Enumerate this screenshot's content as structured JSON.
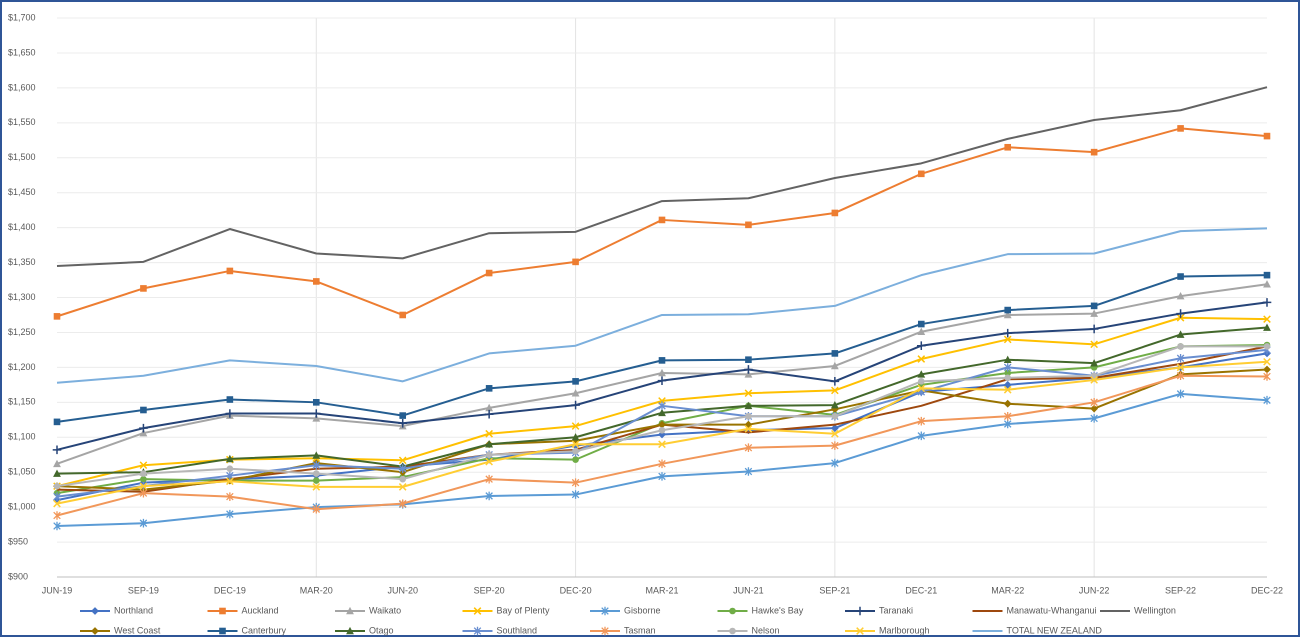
{
  "chart_data": {
    "type": "line",
    "categories": [
      "JUN-19",
      "SEP-19",
      "DEC-19",
      "MAR-20",
      "JUN-20",
      "SEP-20",
      "DEC-20",
      "MAR-21",
      "JUN-21",
      "SEP-21",
      "DEC-21",
      "MAR-22",
      "JUN-22",
      "SEP-22",
      "DEC-22"
    ],
    "ylim": [
      900,
      1700
    ],
    "yticks": [
      {
        "value": 900,
        "label": "$900"
      },
      {
        "value": 950,
        "label": "$950"
      },
      {
        "value": 1000,
        "label": "$1,000"
      },
      {
        "value": 1050,
        "label": "$1,050"
      },
      {
        "value": 1100,
        "label": "$1,100"
      },
      {
        "value": 1150,
        "label": "$1,150"
      },
      {
        "value": 1200,
        "label": "$1,200"
      },
      {
        "value": 1250,
        "label": "$1,250"
      },
      {
        "value": 1300,
        "label": "$1,300"
      },
      {
        "value": 1350,
        "label": "$1,350"
      },
      {
        "value": 1400,
        "label": "$1,400"
      },
      {
        "value": 1450,
        "label": "$1,450"
      },
      {
        "value": 1500,
        "label": "$1,500"
      },
      {
        "value": 1550,
        "label": "$1,550"
      },
      {
        "value": 1600,
        "label": "$1,600"
      },
      {
        "value": 1650,
        "label": "$1,650"
      },
      {
        "value": 1700,
        "label": "$1,700"
      }
    ],
    "legend": "bottom",
    "series": [
      {
        "name": "Northland",
        "color": "#4472c4",
        "marker": "diamond",
        "values": [
          1010,
          1035,
          1040,
          1045,
          1058,
          1068,
          1088,
          1104,
          1110,
          1113,
          1165,
          1175,
          1185,
          1200,
          1220
        ]
      },
      {
        "name": "Auckland",
        "color": "#ed7d31",
        "marker": "square",
        "values": [
          1273,
          1313,
          1338,
          1323,
          1275,
          1335,
          1351,
          1411,
          1404,
          1421,
          1477,
          1515,
          1508,
          1542,
          1531
        ]
      },
      {
        "name": "Waikato",
        "color": "#a5a5a5",
        "marker": "triangle",
        "values": [
          1062,
          1106,
          1131,
          1127,
          1116,
          1142,
          1163,
          1192,
          1190,
          1202,
          1251,
          1275,
          1277,
          1302,
          1319
        ]
      },
      {
        "name": "Bay of Plenty",
        "color": "#ffc000",
        "marker": "cross",
        "values": [
          1030,
          1060,
          1068,
          1070,
          1067,
          1105,
          1116,
          1152,
          1163,
          1167,
          1212,
          1240,
          1233,
          1271,
          1269
        ]
      },
      {
        "name": "Gisborne",
        "color": "#5b9bd5",
        "marker": "star",
        "values": [
          973,
          977,
          990,
          1000,
          1004,
          1016,
          1018,
          1044,
          1051,
          1063,
          1102,
          1119,
          1127,
          1162,
          1153
        ]
      },
      {
        "name": "Hawke's Bay",
        "color": "#70ad47",
        "marker": "circle",
        "values": [
          1020,
          1040,
          1038,
          1038,
          1043,
          1070,
          1068,
          1120,
          1145,
          1132,
          1175,
          1192,
          1200,
          1230,
          1232
        ]
      },
      {
        "name": "Taranaki",
        "color": "#264478",
        "marker": "plus",
        "values": [
          1082,
          1113,
          1134,
          1134,
          1120,
          1133,
          1146,
          1181,
          1197,
          1180,
          1231,
          1249,
          1255,
          1277,
          1293
        ]
      },
      {
        "name": "Manawatu-Whanganui",
        "color": "#9e480e",
        "marker": "none",
        "values": [
          1025,
          1022,
          1040,
          1055,
          1058,
          1075,
          1082,
          1118,
          1107,
          1118,
          1145,
          1183,
          1185,
          1205,
          1230
        ]
      },
      {
        "name": "Wellington",
        "color": "#636363",
        "marker": "none",
        "values": [
          1345,
          1351,
          1398,
          1363,
          1356,
          1392,
          1394,
          1438,
          1442,
          1471,
          1492,
          1527,
          1554,
          1568,
          1601
        ]
      },
      {
        "name": "West Coast",
        "color": "#997300",
        "marker": "diamond",
        "values": [
          1030,
          1025,
          1038,
          1063,
          1050,
          1090,
          1095,
          1118,
          1118,
          1140,
          1167,
          1148,
          1141,
          1190,
          1197
        ]
      },
      {
        "name": "Canterbury",
        "color": "#255e91",
        "marker": "square",
        "values": [
          1122,
          1139,
          1154,
          1150,
          1131,
          1170,
          1180,
          1210,
          1211,
          1220,
          1262,
          1282,
          1288,
          1330,
          1332
        ]
      },
      {
        "name": "Otago",
        "color": "#43682b",
        "marker": "triangle",
        "values": [
          1048,
          1050,
          1069,
          1074,
          1058,
          1090,
          1100,
          1135,
          1145,
          1146,
          1190,
          1211,
          1206,
          1247,
          1257
        ]
      },
      {
        "name": "Southland",
        "color": "#698ed0",
        "marker": "star",
        "values": [
          1015,
          1030,
          1045,
          1060,
          1055,
          1075,
          1078,
          1145,
          1130,
          1130,
          1165,
          1200,
          1188,
          1213,
          1225
        ]
      },
      {
        "name": "Tasman",
        "color": "#f1975a",
        "marker": "star",
        "values": [
          988,
          1020,
          1015,
          997,
          1005,
          1040,
          1035,
          1062,
          1085,
          1088,
          1123,
          1130,
          1150,
          1188,
          1187
        ]
      },
      {
        "name": "Nelson",
        "color": "#b7b7b7",
        "marker": "circle",
        "values": [
          1030,
          1048,
          1055,
          1048,
          1040,
          1075,
          1080,
          1110,
          1130,
          1130,
          1180,
          1185,
          1188,
          1230,
          1230
        ]
      },
      {
        "name": "Marlborough",
        "color": "#ffcd33",
        "marker": "cross",
        "values": [
          1005,
          1030,
          1037,
          1029,
          1029,
          1065,
          1090,
          1090,
          1112,
          1105,
          1170,
          1168,
          1182,
          1200,
          1208
        ]
      },
      {
        "name": "TOTAL NEW ZEALAND",
        "color": "#7cafdd",
        "marker": "none",
        "values": [
          1178,
          1188,
          1210,
          1202,
          1180,
          1220,
          1231,
          1275,
          1276,
          1288,
          1332,
          1362,
          1363,
          1395,
          1399
        ]
      }
    ]
  }
}
